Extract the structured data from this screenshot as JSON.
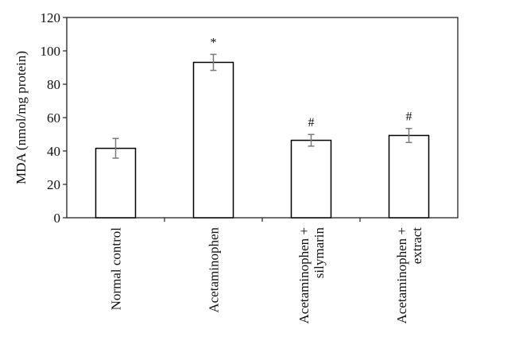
{
  "chart_data": {
    "type": "bar",
    "title": "",
    "xlabel": "",
    "ylabel": "MDA (nmol/mg protein)",
    "ylim": [
      0,
      120
    ],
    "yticks": [
      0,
      20,
      40,
      60,
      80,
      100,
      120
    ],
    "grid": false,
    "categories": [
      [
        "Normal control"
      ],
      [
        "Acetaminophen"
      ],
      [
        "Acetaminophen +",
        "silymarin"
      ],
      [
        "Acetaminophen +",
        "extract"
      ]
    ],
    "values": [
      41.6,
      93.1,
      46.4,
      49.3
    ],
    "errors": [
      5.9,
      4.8,
      3.5,
      4.2
    ],
    "annotations": [
      "",
      "*",
      "#",
      "#"
    ],
    "colors": {
      "bar_fill": "#ffffff",
      "bar_stroke": "#000000",
      "error_bar": "#7a7a7a"
    }
  }
}
